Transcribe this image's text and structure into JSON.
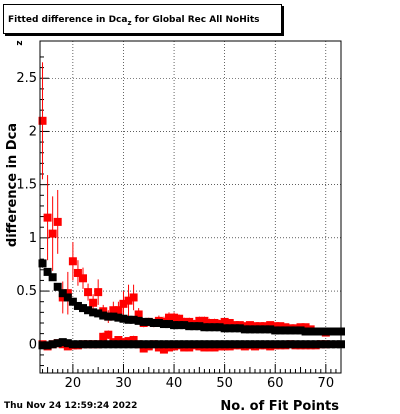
{
  "title_prefix": "Fitted difference in Dca",
  "title_sub": "z",
  "title_suffix": " for Global Rec All NoHits",
  "datestamp": "Thu Nov 24 12:59:24 2022",
  "chart_data": {
    "type": "scatter",
    "title": "Fitted difference in Dca_z for Global Rec All NoHits",
    "xlabel": "No. of Fit Points",
    "ylabel": "difference in Dca",
    "ylabel_sub": "z",
    "xlim": [
      13.5,
      73
    ],
    "ylim": [
      -0.27,
      2.85
    ],
    "x_ticks": [
      20,
      30,
      40,
      50,
      60,
      70
    ],
    "y_ticks": [
      0,
      0.5,
      1,
      1.5,
      2,
      2.5
    ],
    "y_tick_labels": [
      "0",
      "0.5",
      "1",
      "1.5",
      "2",
      "2.5"
    ],
    "grid": true,
    "series": [
      {
        "color": "#ff0000",
        "x": [
          14,
          15,
          16,
          17,
          18,
          19,
          20,
          21,
          22,
          23,
          24,
          25,
          26,
          27,
          28,
          29,
          30,
          31,
          32,
          33,
          34,
          35,
          36,
          37,
          38,
          39,
          40,
          41,
          42,
          43,
          44,
          45,
          46,
          47,
          48,
          49,
          50,
          51,
          52,
          53,
          54,
          55,
          56,
          57,
          58,
          59,
          60,
          61,
          62,
          63,
          64,
          65,
          66,
          67,
          68,
          69,
          70
        ],
        "y": [
          2.1,
          1.19,
          1.04,
          1.15,
          0.44,
          0.48,
          0.78,
          0.67,
          0.62,
          0.49,
          0.39,
          0.49,
          0.31,
          0.26,
          0.32,
          0.32,
          0.38,
          0.41,
          0.44,
          0.28,
          0.2,
          0.21,
          0.2,
          0.22,
          0.21,
          0.25,
          0.25,
          0.24,
          0.21,
          0.21,
          0.19,
          0.22,
          0.22,
          0.2,
          0.2,
          0.19,
          0.21,
          0.2,
          0.18,
          0.18,
          0.17,
          0.18,
          0.17,
          0.17,
          0.17,
          0.18,
          0.17,
          0.17,
          0.16,
          0.15,
          0.15,
          0.16,
          0.16,
          0.14,
          0.12,
          0.12,
          0.11
        ],
        "err": [
          0.55,
          0.4,
          0.35,
          0.3,
          0.15,
          0.2,
          0.18,
          0.12,
          0.1,
          0.08,
          0.08,
          0.12,
          0.06,
          0.06,
          0.08,
          0.08,
          0.12,
          0.15,
          0.12,
          0.06,
          0.04,
          0.04,
          0.04,
          0.05,
          0.05,
          0.05,
          0.05,
          0.04,
          0.04,
          0.04,
          0.04,
          0.04,
          0.04,
          0.04,
          0.04,
          0.04,
          0.03,
          0.03,
          0.03,
          0.03,
          0.03,
          0.03,
          0.03,
          0.03,
          0.03,
          0.03,
          0.03,
          0.03,
          0.03,
          0.03,
          0.03,
          0.03,
          0.03,
          0.03,
          0.03,
          0.03,
          0.03
        ]
      },
      {
        "color": "#000000",
        "x": [
          14,
          15,
          16,
          17,
          18,
          19,
          20,
          21,
          22,
          23,
          24,
          25,
          26,
          27,
          28,
          29,
          30,
          31,
          32,
          33,
          34,
          35,
          36,
          37,
          38,
          39,
          40,
          41,
          42,
          43,
          44,
          45,
          46,
          47,
          48,
          49,
          50,
          51,
          52,
          53,
          54,
          55,
          56,
          57,
          58,
          59,
          60,
          61,
          62,
          63,
          64,
          65,
          66,
          67,
          68,
          69,
          70,
          71,
          72,
          73
        ],
        "y": [
          0.76,
          0.68,
          0.63,
          0.54,
          0.48,
          0.44,
          0.4,
          0.36,
          0.34,
          0.32,
          0.3,
          0.29,
          0.27,
          0.26,
          0.26,
          0.25,
          0.24,
          0.23,
          0.23,
          0.22,
          0.21,
          0.21,
          0.2,
          0.2,
          0.19,
          0.19,
          0.18,
          0.18,
          0.18,
          0.17,
          0.17,
          0.17,
          0.16,
          0.16,
          0.16,
          0.16,
          0.15,
          0.15,
          0.15,
          0.15,
          0.14,
          0.14,
          0.14,
          0.14,
          0.14,
          0.14,
          0.13,
          0.13,
          0.13,
          0.13,
          0.13,
          0.13,
          0.12,
          0.12,
          0.12,
          0.12,
          0.12,
          0.12,
          0.12,
          0.12
        ],
        "err": [
          0.04,
          0.03,
          0.03,
          0.03,
          0.02,
          0.02,
          0.02,
          0.02,
          0.02,
          0.01,
          0.01,
          0.01,
          0.01,
          0.01,
          0.01,
          0.01,
          0.01,
          0.01,
          0.01,
          0.01,
          0.01,
          0.01,
          0.01,
          0.01,
          0.01,
          0.01,
          0.01,
          0.01,
          0.01,
          0.01,
          0.01,
          0.01,
          0.01,
          0.01,
          0.01,
          0.01,
          0.01,
          0.01,
          0.01,
          0.01,
          0.01,
          0.01,
          0.01,
          0.01,
          0.01,
          0.01,
          0.01,
          0.01,
          0.01,
          0.01,
          0.01,
          0.01,
          0.01,
          0.01,
          0.01,
          0.01,
          0.01,
          0.01,
          0.01,
          0.01
        ]
      },
      {
        "color": "#ff0000",
        "x": [
          14,
          15,
          16,
          17,
          18,
          19,
          20,
          21,
          22,
          23,
          24,
          25,
          26,
          27,
          28,
          29,
          30,
          31,
          32,
          33,
          34,
          35,
          36,
          37,
          38,
          39,
          40,
          41,
          42,
          43,
          44,
          45,
          46,
          47,
          48,
          49,
          50,
          51,
          52,
          53,
          54,
          55,
          56,
          57,
          58,
          59,
          60,
          61,
          62,
          63,
          64,
          65,
          66,
          67,
          68,
          69,
          70
        ],
        "y": [
          0.0,
          -0.02,
          0.0,
          0.01,
          0.0,
          -0.02,
          -0.01,
          -0.01,
          0.0,
          0.0,
          0.0,
          0.0,
          0.07,
          0.09,
          0.02,
          0.04,
          0.02,
          0.03,
          0.04,
          0.0,
          -0.04,
          -0.02,
          0.0,
          -0.03,
          -0.05,
          -0.03,
          -0.02,
          -0.01,
          -0.03,
          -0.03,
          -0.01,
          -0.02,
          -0.03,
          -0.03,
          -0.03,
          -0.02,
          -0.02,
          -0.02,
          -0.01,
          -0.01,
          -0.02,
          -0.01,
          -0.02,
          -0.01,
          -0.01,
          -0.02,
          -0.01,
          -0.01,
          -0.01,
          0.0,
          -0.01,
          -0.01,
          -0.01,
          -0.01,
          -0.01,
          0.0,
          0.0
        ],
        "err": [
          0.03,
          0.03,
          0.03,
          0.03,
          0.03,
          0.03,
          0.03,
          0.03,
          0.03,
          0.03,
          0.03,
          0.03,
          0.04,
          0.04,
          0.03,
          0.03,
          0.03,
          0.03,
          0.04,
          0.03,
          0.03,
          0.03,
          0.03,
          0.03,
          0.03,
          0.03,
          0.02,
          0.02,
          0.02,
          0.02,
          0.02,
          0.02,
          0.02,
          0.02,
          0.02,
          0.02,
          0.02,
          0.02,
          0.02,
          0.02,
          0.02,
          0.02,
          0.02,
          0.02,
          0.02,
          0.02,
          0.02,
          0.02,
          0.02,
          0.02,
          0.02,
          0.02,
          0.02,
          0.02,
          0.02,
          0.02,
          0.02
        ]
      },
      {
        "color": "#000000",
        "x": [
          14,
          15,
          16,
          17,
          18,
          19,
          20,
          21,
          22,
          23,
          24,
          25,
          26,
          27,
          28,
          29,
          30,
          31,
          32,
          33,
          34,
          35,
          36,
          37,
          38,
          39,
          40,
          41,
          42,
          43,
          44,
          45,
          46,
          47,
          48,
          49,
          50,
          51,
          52,
          53,
          54,
          55,
          56,
          57,
          58,
          59,
          60,
          61,
          62,
          63,
          64,
          65,
          66,
          67,
          68,
          69,
          70,
          71,
          72,
          73
        ],
        "y": [
          -0.01,
          -0.01,
          0.0,
          0.01,
          0.02,
          0.01,
          0.0,
          0.0,
          0.0,
          0.0,
          0.0,
          0.0,
          0.0,
          0.0,
          0.0,
          0.0,
          0.0,
          0.0,
          0.0,
          0.0,
          0.0,
          0.0,
          0.0,
          0.0,
          0.0,
          0.0,
          0.0,
          0.0,
          0.0,
          0.0,
          0.0,
          0.0,
          0.0,
          0.0,
          0.0,
          0.0,
          0.0,
          0.0,
          0.0,
          0.0,
          0.0,
          0.0,
          0.0,
          0.0,
          0.0,
          0.0,
          0.0,
          0.0,
          0.0,
          0.0,
          0.0,
          0.0,
          0.0,
          0.0,
          0.0,
          0.0,
          0.0,
          0.0,
          0.0,
          0.0
        ],
        "err": [
          0.01,
          0.01,
          0.01,
          0.01,
          0.01,
          0.01,
          0.01,
          0.01,
          0.01,
          0.01,
          0.01,
          0.01,
          0.01,
          0.01,
          0.01,
          0.01,
          0.01,
          0.01,
          0.01,
          0.01,
          0.01,
          0.01,
          0.01,
          0.01,
          0.01,
          0.01,
          0.01,
          0.01,
          0.01,
          0.01,
          0.01,
          0.01,
          0.01,
          0.01,
          0.01,
          0.01,
          0.01,
          0.01,
          0.01,
          0.01,
          0.01,
          0.01,
          0.01,
          0.01,
          0.01,
          0.01,
          0.01,
          0.01,
          0.01,
          0.01,
          0.01,
          0.01,
          0.01,
          0.01,
          0.01,
          0.01,
          0.01,
          0.01,
          0.01,
          0.01
        ]
      }
    ]
  }
}
